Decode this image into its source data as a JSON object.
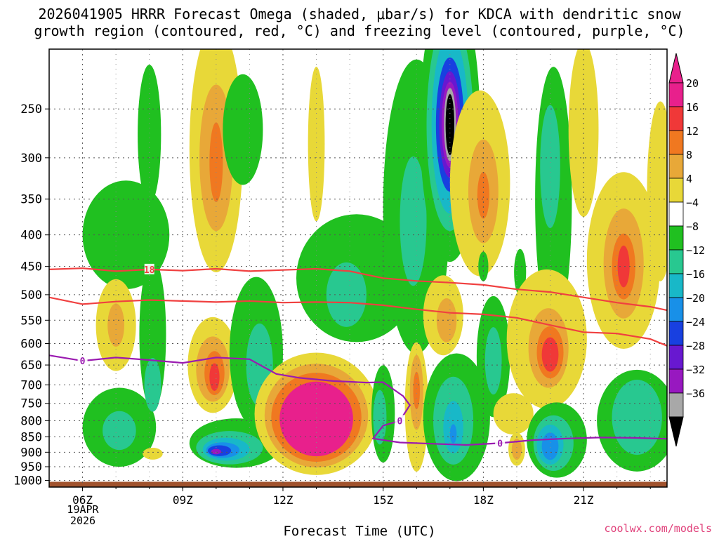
{
  "title_line1": "2026041905 HRRR Forecast Omega (shaded, μbar/s) for KDCA with dendritic snow",
  "title_line2": "growth region (contoured, red, °C) and freezing level (contoured, purple, °C)",
  "credit": "coolwx.com/models",
  "chart_data": {
    "type": "heatmap",
    "title": "2026041905 HRRR Forecast Omega (shaded, μbar/s) for KDCA with dendritic snow growth region (contoured, red, °C) and freezing level (contoured, purple, °C)",
    "xlabel": "Forecast Time (UTC)",
    "ylabel": "",
    "x_range_hours": [
      5,
      23.5
    ],
    "x_ticks": [
      {
        "hour": 6,
        "label": "06Z"
      },
      {
        "hour": 9,
        "label": "09Z"
      },
      {
        "hour": 12,
        "label": "12Z"
      },
      {
        "hour": 15,
        "label": "15Z"
      },
      {
        "hour": 18,
        "label": "18Z"
      },
      {
        "hour": 21,
        "label": "21Z"
      }
    ],
    "date_label": [
      "19APR",
      "2026"
    ],
    "y_range_hPa": [
      1025,
      200
    ],
    "y_ticks": [
      250,
      300,
      350,
      400,
      450,
      500,
      550,
      600,
      650,
      700,
      750,
      800,
      850,
      900,
      950,
      1000
    ],
    "colorbar": {
      "labels": [
        "20",
        "16",
        "12",
        "8",
        "4",
        "−4",
        "−8",
        "−12",
        "−16",
        "−20",
        "−24",
        "−28",
        "−32",
        "−36"
      ],
      "colors": [
        "#e8208c",
        "#f03838",
        "#f07820",
        "#e8a838",
        "#e8d838",
        "#ffffff",
        "#20c020",
        "#28c890",
        "#18b8c8",
        "#1890e8",
        "#1840e0",
        "#6818d0",
        "#9818c0",
        "#a8a8a8"
      ],
      "top_triangle_color": "#e8208c",
      "bottom_triangle_color": "#000000"
    },
    "contours": [
      {
        "name": "dendritic-18C",
        "color": "#f04040",
        "label": "18",
        "points": [
          [
            5,
            455
          ],
          [
            6,
            453
          ],
          [
            7,
            458
          ],
          [
            8,
            455
          ],
          [
            9,
            457
          ],
          [
            10,
            454
          ],
          [
            11,
            458
          ],
          [
            12,
            456
          ],
          [
            13,
            454
          ],
          [
            14,
            458
          ],
          [
            15,
            470
          ],
          [
            16,
            475
          ],
          [
            17,
            478
          ],
          [
            18,
            482
          ],
          [
            19,
            490
          ],
          [
            20,
            495
          ],
          [
            21,
            505
          ],
          [
            22,
            515
          ],
          [
            23,
            523
          ],
          [
            23.5,
            530
          ]
        ]
      },
      {
        "name": "dendritic-12C",
        "color": "#f04040",
        "label": "",
        "points": [
          [
            5,
            505
          ],
          [
            6,
            518
          ],
          [
            7,
            513
          ],
          [
            8,
            510
          ],
          [
            9,
            512
          ],
          [
            10,
            514
          ],
          [
            11,
            512
          ],
          [
            12,
            515
          ],
          [
            13,
            514
          ],
          [
            14,
            515
          ],
          [
            15,
            520
          ],
          [
            16,
            528
          ],
          [
            17,
            535
          ],
          [
            18,
            538
          ],
          [
            19,
            545
          ],
          [
            20,
            560
          ],
          [
            21,
            575
          ],
          [
            22,
            578
          ],
          [
            23,
            590
          ],
          [
            23.5,
            605
          ]
        ]
      },
      {
        "name": "freezing-level-0C",
        "color": "#9a1ab0",
        "label": "0",
        "points": [
          [
            5,
            627
          ],
          [
            6,
            640
          ],
          [
            7,
            632
          ],
          [
            8,
            638
          ],
          [
            9,
            645
          ],
          [
            10,
            632
          ],
          [
            11,
            636
          ],
          [
            11.8,
            672
          ],
          [
            12.5,
            682
          ],
          [
            13.5,
            690
          ],
          [
            14.5,
            694
          ],
          [
            15,
            693
          ],
          [
            15.6,
            730
          ],
          [
            15.8,
            755
          ],
          [
            15.5,
            800
          ],
          [
            15,
            815
          ],
          [
            14.7,
            855
          ],
          [
            15.5,
            868
          ],
          [
            16.5,
            872
          ],
          [
            17.5,
            876
          ],
          [
            18.5,
            870
          ],
          [
            19.5,
            860
          ],
          [
            20.5,
            855
          ],
          [
            21.5,
            852
          ],
          [
            22.5,
            853
          ],
          [
            23.5,
            856
          ]
        ]
      }
    ],
    "cells": [
      {
        "omega": -6,
        "hour": 8,
        "hPa": 275,
        "h_half": 0.35,
        "p_half": 70
      },
      {
        "omega": -6,
        "hour": 7.3,
        "hPa": 400,
        "h_half": 1.3,
        "p_half": 80
      },
      {
        "omega": -6,
        "hour": 8.1,
        "hPa": 580,
        "h_half": 0.4,
        "p_half": 160
      },
      {
        "omega": -6,
        "hour": 7.1,
        "hPa": 820,
        "h_half": 1.1,
        "p_half": 120
      },
      {
        "omega": -10,
        "hour": 7.1,
        "hPa": 830,
        "h_half": 0.5,
        "p_half": 60
      },
      {
        "omega": -10,
        "hour": 8.1,
        "hPa": 700,
        "h_half": 0.25,
        "p_half": 70
      },
      {
        "omega": 6,
        "hour": 7.0,
        "hPa": 560,
        "h_half": 0.6,
        "p_half": 95
      },
      {
        "omega": 10,
        "hour": 7.0,
        "hPa": 560,
        "h_half": 0.25,
        "p_half": 45
      },
      {
        "omega": 6,
        "hour": 8.1,
        "hPa": 905,
        "h_half": 0.3,
        "p_half": 20
      },
      {
        "omega": 6,
        "hour": 10,
        "hPa": 290,
        "h_half": 0.8,
        "p_half": 125
      },
      {
        "omega": 10,
        "hour": 10,
        "hPa": 300,
        "h_half": 0.5,
        "p_half": 80
      },
      {
        "omega": 14,
        "hour": 10,
        "hPa": 305,
        "h_half": 0.2,
        "p_half": 45
      },
      {
        "omega": 6,
        "hour": 9.9,
        "hPa": 650,
        "h_half": 0.75,
        "p_half": 115
      },
      {
        "omega": 10,
        "hour": 9.9,
        "hPa": 660,
        "h_half": 0.5,
        "p_half": 80
      },
      {
        "omega": 14,
        "hour": 9.95,
        "hPa": 670,
        "h_half": 0.3,
        "p_half": 55
      },
      {
        "omega": 18,
        "hour": 9.95,
        "hPa": 680,
        "h_half": 0.15,
        "p_half": 35
      },
      {
        "omega": -6,
        "hour": 10.6,
        "hPa": 870,
        "h_half": 1.4,
        "p_half": 80
      },
      {
        "omega": -10,
        "hour": 10.4,
        "hPa": 885,
        "h_half": 1.0,
        "p_half": 55
      },
      {
        "omega": -14,
        "hour": 10.3,
        "hPa": 890,
        "h_half": 0.7,
        "p_half": 38
      },
      {
        "omega": -18,
        "hour": 10.2,
        "hPa": 893,
        "h_half": 0.5,
        "p_half": 26
      },
      {
        "omega": -22,
        "hour": 10.1,
        "hPa": 895,
        "h_half": 0.35,
        "p_half": 18
      },
      {
        "omega": -30,
        "hour": 10.0,
        "hPa": 898,
        "h_half": 0.15,
        "p_half": 9
      },
      {
        "omega": -6,
        "hour": 11.2,
        "hPa": 620,
        "h_half": 0.8,
        "p_half": 170
      },
      {
        "omega": -10,
        "hour": 11.3,
        "hPa": 650,
        "h_half": 0.4,
        "p_half": 100
      },
      {
        "omega": -6,
        "hour": 10.8,
        "hPa": 270,
        "h_half": 0.6,
        "p_half": 55
      },
      {
        "omega": 6,
        "hour": 13,
        "hPa": 780,
        "h_half": 1.85,
        "p_half": 175
      },
      {
        "omega": 10,
        "hour": 13,
        "hPa": 785,
        "h_half": 1.55,
        "p_half": 150
      },
      {
        "omega": 14,
        "hour": 13,
        "hPa": 790,
        "h_half": 1.35,
        "p_half": 130
      },
      {
        "omega": 20,
        "hour": 13,
        "hPa": 795,
        "h_half": 1.1,
        "p_half": 110
      },
      {
        "omega": 6,
        "hour": 13.0,
        "hPa": 285,
        "h_half": 0.25,
        "p_half": 80
      },
      {
        "omega": -6,
        "hour": 14.2,
        "hPa": 470,
        "h_half": 1.8,
        "p_half": 110
      },
      {
        "omega": -10,
        "hour": 13.9,
        "hPa": 500,
        "h_half": 0.6,
        "p_half": 60
      },
      {
        "omega": -6,
        "hour": 16.0,
        "hPa": 360,
        "h_half": 1.0,
        "p_half": 180
      },
      {
        "omega": -10,
        "hour": 15.9,
        "hPa": 380,
        "h_half": 0.4,
        "p_half": 90
      },
      {
        "omega": -6,
        "hour": 15.0,
        "hPa": 780,
        "h_half": 0.35,
        "p_half": 140
      },
      {
        "omega": -10,
        "hour": 14.9,
        "hPa": 790,
        "h_half": 0.2,
        "p_half": 80
      },
      {
        "omega": -6,
        "hour": 17.0,
        "hPa": 265,
        "h_half": 0.9,
        "p_half": 125
      },
      {
        "omega": -10,
        "hour": 17.0,
        "hPa": 265,
        "h_half": 0.7,
        "p_half": 100
      },
      {
        "omega": -14,
        "hour": 17.0,
        "hPa": 265,
        "h_half": 0.55,
        "p_half": 85
      },
      {
        "omega": -20,
        "hour": 17.0,
        "hPa": 265,
        "h_half": 0.42,
        "p_half": 65
      },
      {
        "omega": -24,
        "hour": 17.0,
        "hPa": 265,
        "h_half": 0.32,
        "p_half": 52
      },
      {
        "omega": -28,
        "hour": 17.0,
        "hPa": 265,
        "h_half": 0.25,
        "p_half": 42
      },
      {
        "omega": -34,
        "hour": 17.0,
        "hPa": 265,
        "h_half": 0.18,
        "p_half": 36
      },
      {
        "omega": -40,
        "hour": 17.0,
        "hPa": 265,
        "h_half": 0.13,
        "p_half": 30
      },
      {
        "omega": 6,
        "hour": 17.9,
        "hPa": 330,
        "h_half": 0.9,
        "p_half": 110
      },
      {
        "omega": 10,
        "hour": 18.0,
        "hPa": 340,
        "h_half": 0.45,
        "p_half": 65
      },
      {
        "omega": 14,
        "hour": 18.0,
        "hPa": 345,
        "h_half": 0.18,
        "p_half": 30
      },
      {
        "omega": 6,
        "hour": 16.8,
        "hPa": 540,
        "h_half": 0.6,
        "p_half": 80
      },
      {
        "omega": 10,
        "hour": 16.9,
        "hPa": 550,
        "h_half": 0.3,
        "p_half": 45
      },
      {
        "omega": 6,
        "hour": 16.0,
        "hPa": 760,
        "h_half": 0.35,
        "p_half": 180
      },
      {
        "omega": 10,
        "hour": 16.0,
        "hPa": 720,
        "h_half": 0.2,
        "p_half": 100
      },
      {
        "omega": 14,
        "hour": 16.0,
        "hPa": 715,
        "h_half": 0.1,
        "p_half": 50
      },
      {
        "omega": -6,
        "hour": 17.2,
        "hPa": 790,
        "h_half": 1.0,
        "p_half": 185
      },
      {
        "omega": -10,
        "hour": 17.1,
        "hPa": 800,
        "h_half": 0.6,
        "p_half": 130
      },
      {
        "omega": -14,
        "hour": 17.1,
        "hPa": 820,
        "h_half": 0.3,
        "p_half": 80
      },
      {
        "omega": -18,
        "hour": 17.1,
        "hPa": 840,
        "h_half": 0.1,
        "p_half": 30
      },
      {
        "omega": -6,
        "hour": 18.0,
        "hPa": 450,
        "h_half": 0.15,
        "p_half": 25
      },
      {
        "omega": -6,
        "hour": 18.3,
        "hPa": 630,
        "h_half": 0.5,
        "p_half": 140
      },
      {
        "omega": -10,
        "hour": 18.3,
        "hPa": 640,
        "h_half": 0.25,
        "p_half": 80
      },
      {
        "omega": 6,
        "hour": 18.9,
        "hPa": 780,
        "h_half": 0.6,
        "p_half": 60
      },
      {
        "omega": 6,
        "hour": 19.0,
        "hPa": 890,
        "h_half": 0.25,
        "p_half": 55
      },
      {
        "omega": 10,
        "hour": 19.0,
        "hPa": 890,
        "h_half": 0.15,
        "p_half": 35
      },
      {
        "omega": -6,
        "hour": 20.1,
        "hPa": 350,
        "h_half": 0.55,
        "p_half": 160
      },
      {
        "omega": -10,
        "hour": 20.0,
        "hPa": 310,
        "h_half": 0.3,
        "p_half": 70
      },
      {
        "omega": -6,
        "hour": 19.1,
        "hPa": 460,
        "h_half": 0.18,
        "p_half": 40
      },
      {
        "omega": 6,
        "hour": 19.9,
        "hPa": 590,
        "h_half": 1.2,
        "p_half": 150
      },
      {
        "omega": 10,
        "hour": 19.95,
        "hPa": 610,
        "h_half": 0.6,
        "p_half": 90
      },
      {
        "omega": 14,
        "hour": 20.0,
        "hPa": 620,
        "h_half": 0.4,
        "p_half": 60
      },
      {
        "omega": 18,
        "hour": 20.0,
        "hPa": 625,
        "h_half": 0.25,
        "p_half": 40
      },
      {
        "omega": -6,
        "hour": 20.2,
        "hPa": 860,
        "h_half": 0.9,
        "p_half": 120
      },
      {
        "omega": -10,
        "hour": 20.1,
        "hPa": 870,
        "h_half": 0.6,
        "p_half": 90
      },
      {
        "omega": -14,
        "hour": 20.0,
        "hPa": 875,
        "h_half": 0.4,
        "p_half": 65
      },
      {
        "omega": -18,
        "hour": 20.0,
        "hPa": 880,
        "h_half": 0.25,
        "p_half": 45
      },
      {
        "omega": -6,
        "hour": 22.6,
        "hPa": 800,
        "h_half": 1.2,
        "p_half": 150
      },
      {
        "omega": -10,
        "hour": 22.6,
        "hPa": 790,
        "h_half": 0.75,
        "p_half": 110
      },
      {
        "omega": 6,
        "hour": 21.0,
        "hPa": 270,
        "h_half": 0.45,
        "p_half": 85
      },
      {
        "omega": 6,
        "hour": 22.2,
        "hPa": 440,
        "h_half": 1.1,
        "p_half": 140
      },
      {
        "omega": 10,
        "hour": 22.2,
        "hPa": 445,
        "h_half": 0.6,
        "p_half": 90
      },
      {
        "omega": 14,
        "hour": 22.2,
        "hPa": 450,
        "h_half": 0.35,
        "p_half": 55
      },
      {
        "omega": 18,
        "hour": 22.2,
        "hPa": 450,
        "h_half": 0.18,
        "p_half": 35
      },
      {
        "omega": 6,
        "hour": 23.3,
        "hPa": 340,
        "h_half": 0.4,
        "p_half": 110
      }
    ],
    "terrain_color": "#a0522d"
  }
}
